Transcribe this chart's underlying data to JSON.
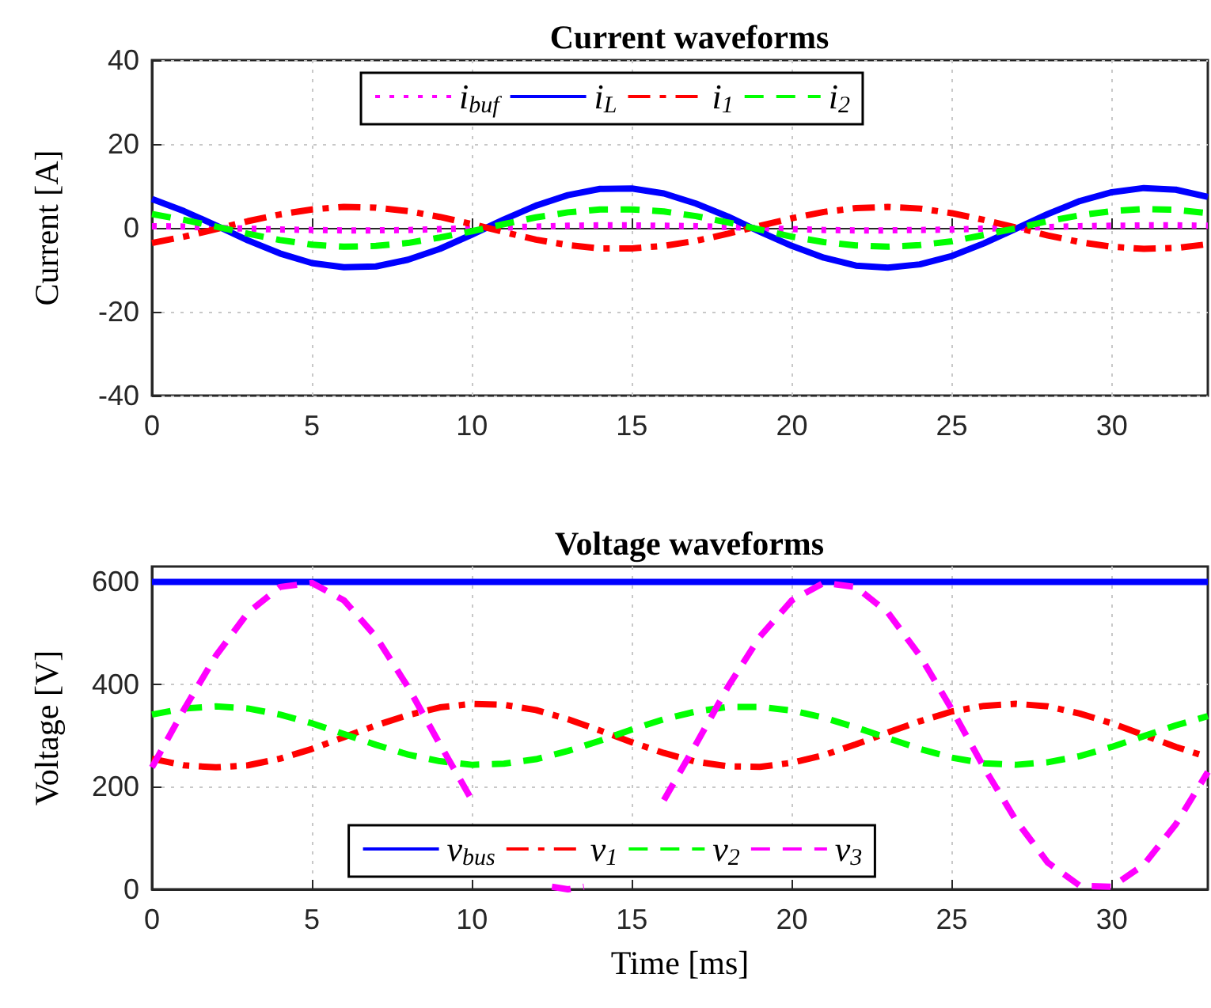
{
  "chart_data": [
    {
      "type": "line",
      "title": "Current waveforms",
      "ylabel": "Current [A]",
      "x": [
        0,
        1,
        2,
        3,
        4,
        5,
        6,
        7,
        8,
        9,
        10,
        11,
        12,
        13,
        14,
        15,
        16,
        17,
        18,
        19,
        20,
        21,
        22,
        23,
        24,
        25,
        26,
        27,
        28,
        29,
        30,
        31,
        32,
        33
      ],
      "series": [
        {
          "name": "i$_{buf}$",
          "color": "#ff00ff",
          "line_style": "dotted",
          "values": [
            0.4,
            0.3,
            0,
            -0.2,
            -0.4,
            -0.5,
            -0.6,
            -0.6,
            -0.5,
            -0.3,
            -0.1,
            0.1,
            0.3,
            0.5,
            0.6,
            0.6,
            0.5,
            0.4,
            0.2,
            -0.1,
            -0.3,
            -0.5,
            -0.6,
            -0.6,
            -0.5,
            -0.4,
            -0.2,
            0,
            0.2,
            0.4,
            0.5,
            0.6,
            0.6,
            0.5
          ]
        },
        {
          "name": "i$_{L}$",
          "color": "#0000ff",
          "line_style": "solid",
          "values": [
            6.9,
            4.0,
            0.6,
            -3.0,
            -6.1,
            -8.4,
            -9.4,
            -9.2,
            -7.6,
            -5.0,
            -1.6,
            2.0,
            5.3,
            7.8,
            9.3,
            9.4,
            8.2,
            5.8,
            2.7,
            -0.9,
            -4.3,
            -7.1,
            -9.0,
            -9.5,
            -8.7,
            -6.7,
            -3.7,
            -0.2,
            3.3,
            6.4,
            8.5,
            9.5,
            9.1,
            7.4
          ]
        },
        {
          "name": "i$_{1}$",
          "color": "#ff0000",
          "line_style": "dashdot",
          "values": [
            -3.6,
            -2.1,
            -0.3,
            1.6,
            3.2,
            4.4,
            5.0,
            4.8,
            4.0,
            2.6,
            0.9,
            -1.0,
            -2.8,
            -4.1,
            -4.9,
            -4.9,
            -4.3,
            -3.1,
            -1.4,
            0.5,
            2.3,
            3.8,
            4.7,
            5.0,
            4.6,
            3.5,
            1.9,
            0.1,
            -1.8,
            -3.4,
            -4.5,
            -5.0,
            -4.8,
            -3.9
          ]
        },
        {
          "name": "i$_{2}$",
          "color": "#00ff00",
          "line_style": "dashed",
          "values": [
            3.3,
            1.9,
            0.3,
            -1.4,
            -2.9,
            -4.0,
            -4.5,
            -4.3,
            -3.6,
            -2.3,
            -0.8,
            0.9,
            2.5,
            3.7,
            4.4,
            4.4,
            3.9,
            2.8,
            1.3,
            -0.4,
            -2.1,
            -3.4,
            -4.2,
            -4.5,
            -4.1,
            -3.2,
            -1.7,
            -0.1,
            1.6,
            3.0,
            4.0,
            4.5,
            4.3,
            3.5
          ]
        }
      ],
      "xlim": [
        0,
        33
      ],
      "xticks": [
        0,
        5,
        10,
        15,
        20,
        25,
        30
      ],
      "ylim": [
        -40,
        40
      ],
      "yticks": [
        -40,
        -20,
        0,
        20,
        40
      ],
      "grid": true,
      "legend": "top"
    },
    {
      "type": "line",
      "title": "Voltage waveforms",
      "xlabel": "Time [ms]",
      "ylabel": "Voltage [V]",
      "x": [
        0,
        1,
        2,
        3,
        4,
        5,
        6,
        7,
        8,
        9,
        10,
        11,
        12,
        13,
        14,
        15,
        16,
        17,
        18,
        19,
        20,
        21,
        22,
        23,
        24,
        25,
        26,
        27,
        28,
        29,
        30,
        31,
        32,
        33
      ],
      "series": [
        {
          "name": "v$_{bus}$",
          "color": "#0000ff",
          "line_style": "solid",
          "values": [
            600,
            600,
            600,
            600,
            600,
            600,
            600,
            600,
            600,
            600,
            600,
            600,
            600,
            600,
            600,
            600,
            600,
            600,
            600,
            600,
            600,
            600,
            600,
            600,
            600,
            600,
            600,
            600,
            600,
            600,
            600,
            600,
            600,
            600
          ]
        },
        {
          "name": "v$_{1}$",
          "color": "#ff0000",
          "line_style": "dashdot",
          "values": [
            255,
            242,
            238,
            242,
            255,
            274,
            297,
            320,
            340,
            355,
            362,
            360,
            350,
            332,
            310,
            287,
            266,
            249,
            240,
            239,
            247,
            262,
            283,
            306,
            328,
            347,
            358,
            362,
            357,
            343,
            324,
            301,
            278,
            258
          ]
        },
        {
          "name": "v$_{2}$",
          "color": "#00ff00",
          "line_style": "dashed",
          "values": [
            341,
            353,
            357,
            353,
            341,
            324,
            303,
            282,
            263,
            250,
            243,
            245,
            254,
            270,
            290,
            312,
            332,
            347,
            356,
            356,
            349,
            335,
            316,
            295,
            274,
            257,
            246,
            243,
            248,
            260,
            278,
            299,
            320,
            338
          ]
        },
        {
          "name": "v$_{3}$",
          "color": "#ff00ff",
          "line_style": "dashed",
          "x": [
            0,
            1,
            2,
            3,
            4,
            5,
            6,
            7,
            8,
            9,
            10,
            11,
            12,
            12.5,
            13,
            13.5,
            14,
            15,
            16,
            17,
            18,
            19,
            20,
            21,
            22,
            23,
            24,
            25,
            26,
            27,
            28,
            29,
            30,
            31,
            32,
            33
          ],
          "values": [
            238,
            351,
            456,
            540,
            590,
            598,
            564,
            493,
            395,
            283,
            174,
            null,
            null,
            5,
            0,
            5,
            null,
            null,
            174,
            283,
            395,
            493,
            564,
            598,
            590,
            540,
            456,
            351,
            238,
            135,
            52,
            7,
            5,
            48,
            127,
            229
          ]
        }
      ],
      "xlim": [
        0,
        33
      ],
      "xticks": [
        0,
        5,
        10,
        15,
        20,
        25,
        30
      ],
      "ylim": [
        0,
        630
      ],
      "yticks": [
        0,
        200,
        400,
        600
      ],
      "grid": true,
      "legend": "bottom"
    }
  ]
}
